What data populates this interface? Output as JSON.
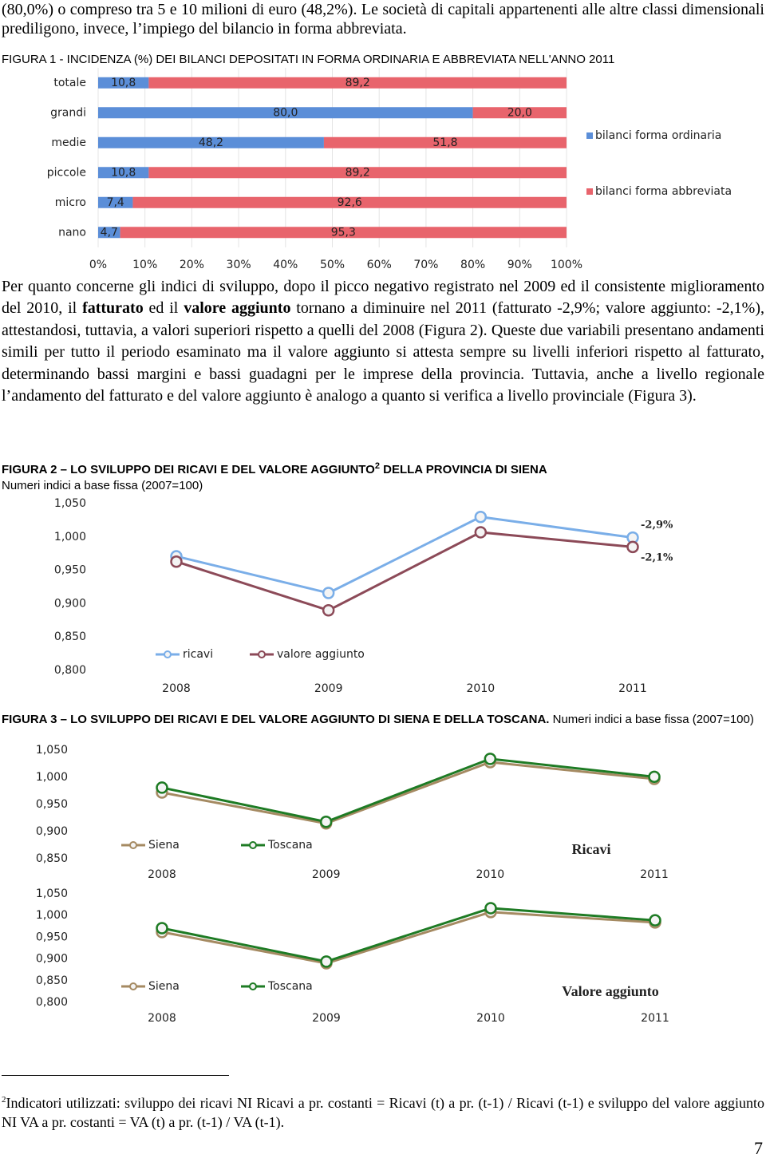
{
  "intro_text": "(80,0%) o compreso tra 5 e 10 milioni di euro (48,2%). Le società di capitali appartenenti alle altre classi dimensionali prediligono, invece, l’impiego del bilancio in forma abbreviata.",
  "figure1_caption": "FIGURA 1 - INCIDENZA (%) DEI BILANCI DEPOSITATI IN FORMA ORDINARIA E ABBREVIATA NELL'ANNO 2011",
  "paragraph": [
    "Per quanto concerne gli indici di sviluppo, dopo il picco negativo registrato nel 2009 ed il consistente miglioramento del 2010, il ",
    "fatturato",
    " ed il ",
    "valore aggiunto",
    " tornano a diminuire nel 2011 (fatturato -2,9%; valore aggiunto: -2,1%), attestandosi, tuttavia, a valori superiori rispetto a quelli del 2008 (Figura 2). Queste due variabili presentano andamenti simili per tutto il periodo esaminato ma il valore aggiunto si attesta sempre su livelli inferiori rispetto al fatturato, determinando bassi margini e bassi guadagni per le imprese della provincia. Tuttavia, anche a livello regionale l’andamento del fatturato e del valore aggiunto è analogo a quanto si verifica a livello provinciale (Figura 3)."
  ],
  "figure2_caption": [
    "FIGURA 2 – LO SVILUPPO DEI RICAVI E DEL VALORE AGGIUNTO",
    "2",
    " DELLA PROVINCIA DI SIENA"
  ],
  "figure2_subtitle": "Numeri indici a base fissa (2007=100)",
  "figure3_caption": [
    "FIGURA 3 – LO SVILUPPO DEI RICAVI E DEL VALORE AGGIUNTO DI SIENA E DELLA TOSCANA.",
    " Numeri indici a base fissa (2007=100)"
  ],
  "chart_data": [
    {
      "type": "bar",
      "orientation": "horizontal",
      "stacked": true,
      "grid": true,
      "legend": "right",
      "categories": [
        "totale",
        "grandi",
        "medie",
        "piccole",
        "micro",
        "nano"
      ],
      "series": [
        {
          "name": "bilanci forma ordinaria",
          "color": "#5b8ed8",
          "values": [
            10.8,
            80.0,
            48.2,
            10.8,
            7.4,
            4.7
          ],
          "value_labels": [
            "10,8",
            "80,0",
            "48,2",
            "10,8",
            "7,4",
            "4,7"
          ]
        },
        {
          "name": "bilanci forma abbreviata",
          "color": "#e8646c",
          "values": [
            89.2,
            20.0,
            51.8,
            89.2,
            92.6,
            95.3
          ],
          "value_labels": [
            "89,2",
            "20,0",
            "51,8",
            "89,2",
            "92,6",
            "95,3"
          ]
        }
      ],
      "xlim": [
        0,
        100
      ],
      "xticks": [
        {
          "value": 0,
          "label": "0%"
        },
        {
          "value": 10,
          "label": "10%"
        },
        {
          "value": 20,
          "label": "20%"
        },
        {
          "value": 30,
          "label": "30%"
        },
        {
          "value": 40,
          "label": "40%"
        },
        {
          "value": 50,
          "label": "50%"
        },
        {
          "value": 60,
          "label": "60%"
        },
        {
          "value": 70,
          "label": "70%"
        },
        {
          "value": 80,
          "label": "80%"
        },
        {
          "value": 90,
          "label": "90%"
        },
        {
          "value": 100,
          "label": "100%"
        }
      ]
    },
    {
      "type": "line",
      "grid": false,
      "legend": "bottom-left",
      "categories": [
        "2008",
        "2009",
        "2010",
        "2011"
      ],
      "series": [
        {
          "name": "ricavi",
          "color": "#7aaee8",
          "values": [
            0.971,
            0.916,
            1.03,
            0.999
          ]
        },
        {
          "name": "valore aggiunto",
          "color": "#8c4a58",
          "values": [
            0.963,
            0.89,
            1.007,
            0.985
          ]
        }
      ],
      "ylim": [
        0.8,
        1.05
      ],
      "yticks": [
        {
          "value": 0.8,
          "label": "0,800"
        },
        {
          "value": 0.85,
          "label": "0,850"
        },
        {
          "value": 0.9,
          "label": "0,900"
        },
        {
          "value": 0.95,
          "label": "0,950"
        },
        {
          "value": 1.0,
          "label": "1,000"
        },
        {
          "value": 1.05,
          "label": "1,050"
        }
      ],
      "annotations": [
        "-2,9%",
        "-2,1%"
      ]
    },
    {
      "type": "line",
      "grid": false,
      "legend": "bottom-left",
      "title": "Ricavi",
      "categories": [
        "2008",
        "2009",
        "2010",
        "2011"
      ],
      "series": [
        {
          "name": "Siena",
          "color": "#a58a62",
          "values": [
            0.972,
            0.915,
            1.028,
            0.997
          ]
        },
        {
          "name": "Toscana",
          "color": "#1e7b24",
          "values": [
            0.981,
            0.918,
            1.034,
            1.001
          ]
        }
      ],
      "ylim": [
        0.85,
        1.05
      ],
      "yticks": [
        {
          "value": 0.85,
          "label": "0,850"
        },
        {
          "value": 0.9,
          "label": "0,900"
        },
        {
          "value": 0.95,
          "label": "0,950"
        },
        {
          "value": 1.0,
          "label": "1,000"
        },
        {
          "value": 1.05,
          "label": "1,050"
        }
      ]
    },
    {
      "type": "line",
      "grid": false,
      "legend": "bottom-left",
      "title": "Valore aggiunto",
      "categories": [
        "2008",
        "2009",
        "2010",
        "2011"
      ],
      "series": [
        {
          "name": "Siena",
          "color": "#a58a62",
          "values": [
            0.962,
            0.89,
            1.008,
            0.984
          ]
        },
        {
          "name": "Toscana",
          "color": "#1e7b24",
          "values": [
            0.971,
            0.894,
            1.017,
            0.989
          ]
        }
      ],
      "ylim": [
        0.8,
        1.05
      ],
      "yticks": [
        {
          "value": 0.8,
          "label": "0,800"
        },
        {
          "value": 0.85,
          "label": "0,850"
        },
        {
          "value": 0.9,
          "label": "0,900"
        },
        {
          "value": 0.95,
          "label": "0,950"
        },
        {
          "value": 1.0,
          "label": "1,000"
        },
        {
          "value": 1.05,
          "label": "1,050"
        }
      ]
    }
  ],
  "footnote": {
    "marker": "2",
    "text": "Indicatori utilizzati: sviluppo dei ricavi NI Ricavi a pr. costanti = Ricavi (t) a pr. (t-1) / Ricavi (t-1) e sviluppo del valore aggiunto NI VA a pr. costanti = VA (t) a pr. (t-1) / VA (t-1)."
  },
  "page_number": "7"
}
